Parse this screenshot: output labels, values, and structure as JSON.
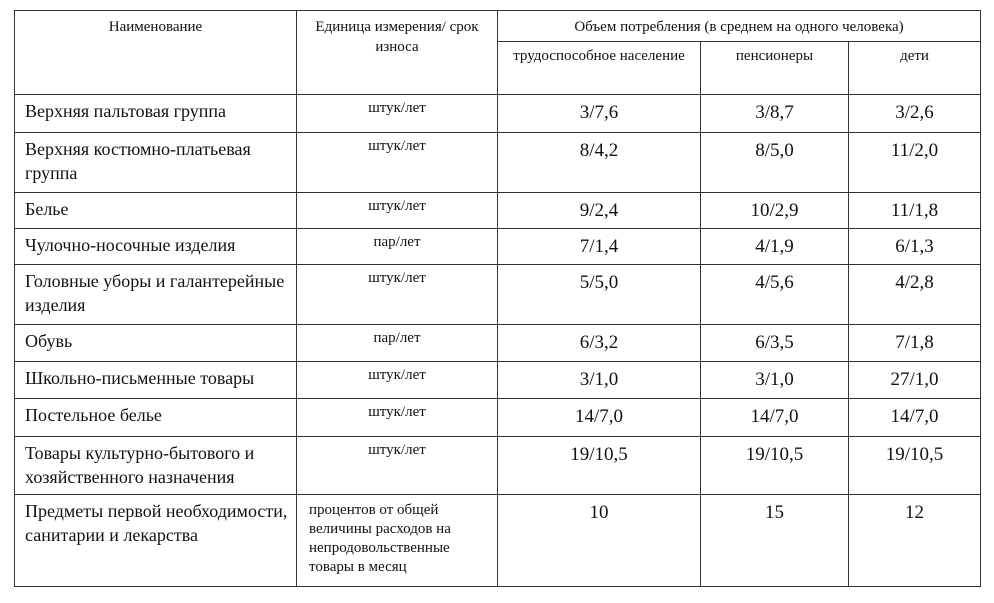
{
  "header": {
    "name": "Наименование",
    "unit": "Единица измерения/ срок износа",
    "volume": "Объем потребления (в среднем на одного человека)",
    "groups": [
      "трудоспособное население",
      "пенсионеры",
      "дети"
    ]
  },
  "rows": [
    {
      "name": "Верхняя пальтовая группа",
      "unit": "штук/лет",
      "values": [
        "3/7,6",
        "3/8,7",
        "3/2,6"
      ]
    },
    {
      "name": "Верхняя костюмно-платьевая группа",
      "unit": "штук/лет",
      "values": [
        "8/4,2",
        "8/5,0",
        "11/2,0"
      ]
    },
    {
      "name": "Белье",
      "unit": "штук/лет",
      "values": [
        "9/2,4",
        "10/2,9",
        "11/1,8"
      ]
    },
    {
      "name": "Чулочно-носочные изделия",
      "unit": "пар/лет",
      "values": [
        "7/1,4",
        "4/1,9",
        "6/1,3"
      ]
    },
    {
      "name": "Головные уборы и галантерейные изделия",
      "unit": "штук/лет",
      "values": [
        "5/5,0",
        "4/5,6",
        "4/2,8"
      ]
    },
    {
      "name": "Обувь",
      "unit": "пар/лет",
      "values": [
        "6/3,2",
        "6/3,5",
        "7/1,8"
      ]
    },
    {
      "name": "Школьно-письменные товары",
      "unit": "штук/лет",
      "values": [
        "3/1,0",
        "3/1,0",
        "27/1,0"
      ]
    },
    {
      "name": "Постельное белье",
      "unit": "штук/лет",
      "values": [
        "14/7,0",
        "14/7,0",
        "14/7,0"
      ]
    },
    {
      "name": "Товары культурно-бытового и хозяйственного назначения",
      "unit": "штук/лет",
      "values": [
        "19/10,5",
        "19/10,5",
        "19/10,5"
      ]
    },
    {
      "name": "Предметы первой необходимости, санитарии и лекарства",
      "unit": "процентов от общей величины расходов на непродовольственные товары в месяц",
      "values": [
        "10",
        "15",
        "12"
      ]
    }
  ]
}
